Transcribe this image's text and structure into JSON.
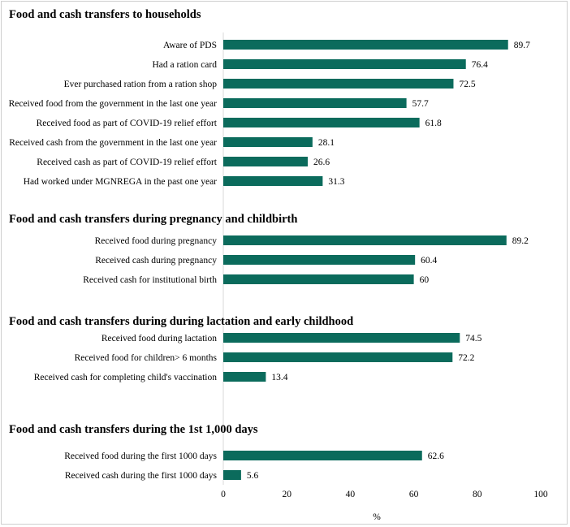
{
  "chart_data": {
    "type": "bar",
    "orientation": "horizontal",
    "xlabel": "%",
    "xlim": [
      0,
      100
    ],
    "xticks": [
      "0",
      "20",
      "40",
      "60",
      "80",
      "100"
    ],
    "bar_color": "#0b6b5c",
    "sections": [
      {
        "title": "Food and cash transfers to households",
        "items": [
          {
            "label": "Aware of PDS",
            "value": 89.7
          },
          {
            "label": "Had a ration card",
            "value": 76.4
          },
          {
            "label": "Ever purchased ration from a ration shop",
            "value": 72.5
          },
          {
            "label": "Received food from the government in the last one year",
            "value": 57.7
          },
          {
            "label": "Received food as part of COVID-19 relief effort",
            "value": 61.8
          },
          {
            "label": "Received cash from the government in the last one year",
            "value": 28.1
          },
          {
            "label": "Received cash as part of COVID-19 relief effort",
            "value": 26.6
          },
          {
            "label": "Had worked under MGNREGA in the past one year",
            "value": 31.3
          }
        ]
      },
      {
        "title": "Food and cash transfers during pregnancy and childbirth",
        "items": [
          {
            "label": "Received food during pregnancy",
            "value": 89.2
          },
          {
            "label": "Received cash during pregnancy",
            "value": 60.4
          },
          {
            "label": "Received cash for institutional birth",
            "value": 60
          }
        ]
      },
      {
        "title": "Food and cash transfers during during lactation and early childhood",
        "items": [
          {
            "label": "Received food during lactation",
            "value": 74.5
          },
          {
            "label": "Received food for children> 6 months",
            "value": 72.2
          },
          {
            "label": "Received cash for completing child's vaccination",
            "value": 13.4
          }
        ]
      },
      {
        "title": "Food and cash transfers during the 1st 1,000 days",
        "items": [
          {
            "label": "Received food during the first 1000 days",
            "value": 62.6
          },
          {
            "label": "Received cash during the first 1000 days",
            "value": 5.6
          }
        ]
      }
    ]
  }
}
